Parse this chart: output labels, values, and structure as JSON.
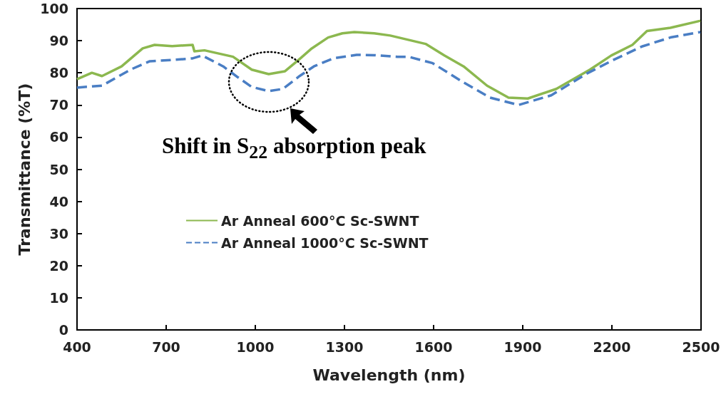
{
  "chart_data": {
    "type": "line",
    "xlabel": "Wavelength (nm)",
    "ylabel": "Transmittance (%T)",
    "xlim": [
      400,
      2500
    ],
    "xticks": [
      400,
      700,
      1000,
      1300,
      1600,
      1900,
      2200,
      2500
    ],
    "ylim": [
      0,
      100
    ],
    "yticks": [
      0,
      10,
      20,
      30,
      40,
      50,
      60,
      70,
      80,
      90,
      100
    ],
    "grid": false,
    "legend": "left",
    "marker": "none",
    "annotations": [
      "Shift in S$_{22}$ absorption peak"
    ],
    "series": [
      {
        "name": "Ar Anneal 600°C Sc-SWNT",
        "color": "#8cb84f",
        "line_style": "solid",
        "x": [
          400,
          450,
          484,
          550,
          621,
          661,
          720,
          789,
          795,
          829,
          925,
          988,
          1045,
          1100,
          1149,
          1190,
          1245,
          1293,
          1333,
          1400,
          1454,
          1573,
          1636,
          1701,
          1780,
          1852,
          1917,
          2013,
          2126,
          2198,
          2269,
          2318,
          2397,
          2498
        ],
        "values": [
          78,
          80,
          79,
          82,
          87.6,
          88.7,
          88.3,
          88.7,
          86.7,
          87,
          85,
          81,
          79.6,
          80.5,
          84.3,
          87.6,
          91,
          92.3,
          92.7,
          92.3,
          91.6,
          89,
          85.4,
          82,
          76,
          72.3,
          72,
          75,
          81,
          85.4,
          88.7,
          93,
          94,
          96.2
        ]
      },
      {
        "name": "Ar Anneal 1000°C Sc-SWNT",
        "color": "#4a7ec4",
        "line_style": "dashed",
        "x": [
          400,
          484,
          580,
          645,
          720,
          789,
          821,
          892,
          940,
          988,
          1045,
          1093,
          1149,
          1197,
          1262,
          1341,
          1400,
          1478,
          1516,
          1597,
          1701,
          1790,
          1886,
          1996,
          2116,
          2205,
          2301,
          2397,
          2498
        ],
        "values": [
          75.4,
          76,
          81,
          83.6,
          84,
          84.5,
          85.4,
          82,
          78.7,
          75.6,
          74.3,
          75,
          79,
          82,
          84.5,
          85.6,
          85.5,
          85,
          85,
          83,
          77,
          72.3,
          70,
          73,
          79.8,
          84,
          88.2,
          91,
          92.7
        ]
      }
    ]
  }
}
